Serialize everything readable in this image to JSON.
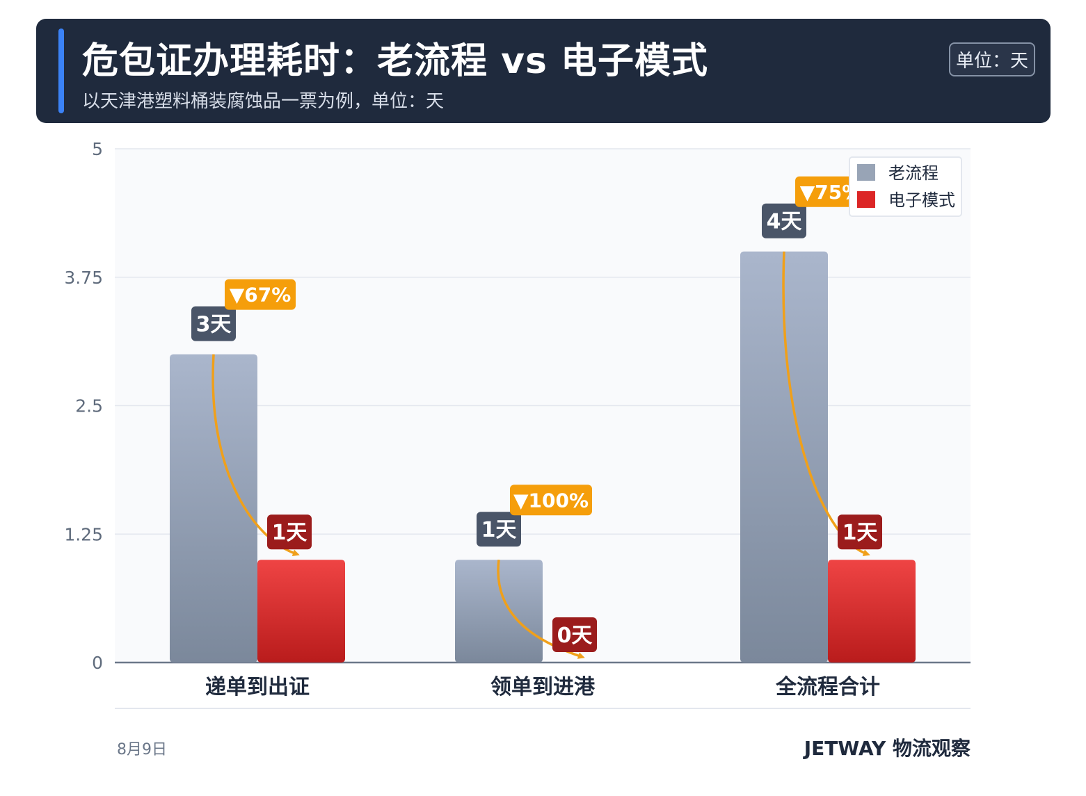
{
  "header": {
    "title": "危包证办理耗时：老流程 vs 电子模式",
    "subtitle": "以天津港塑料桶装腐蚀品一票为例，单位：天",
    "unit_badge": "单位：天"
  },
  "footer": {
    "date": "8月9日",
    "brand": "JETWAY 物流观察"
  },
  "colors": {
    "old_top": "#aab6cc",
    "old_bottom": "#7b889b",
    "new_top": "#ef4444",
    "new_bottom": "#b91c1c",
    "old_label_bg": "#4a5568",
    "new_label_bg": "#9b1c1c",
    "reduction_bg": "#f59e0b",
    "arrow": "#f0a01a",
    "legend_old": "#98a4b6",
    "legend_new": "#dc2626"
  },
  "chart_data": {
    "type": "bar",
    "categories": [
      "递单到出证",
      "领单到进港",
      "全流程合计"
    ],
    "series": [
      {
        "name": "老流程",
        "values": [
          3,
          1,
          4
        ]
      },
      {
        "name": "电子模式",
        "values": [
          1,
          0,
          1
        ]
      }
    ],
    "value_labels": {
      "老流程": [
        "3天",
        "1天",
        "4天"
      ],
      "电子模式": [
        "1天",
        "0天",
        "1天"
      ]
    },
    "reduction_labels": [
      "▼67%",
      "▼100%",
      "▼75%"
    ],
    "y_ticks": [
      "0",
      "1.25",
      "2.5",
      "3.75",
      "5"
    ],
    "ylim": [
      0,
      5
    ],
    "grid": true,
    "legend_position": "top-right"
  }
}
